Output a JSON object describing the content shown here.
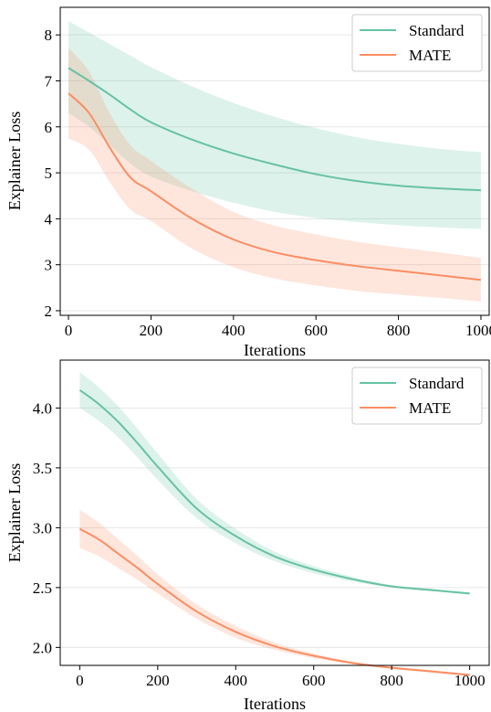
{
  "chart_data": [
    {
      "type": "line",
      "title": "",
      "xlabel": "Iterations",
      "ylabel": "Explainer Loss",
      "xlim": [
        -20,
        1020
      ],
      "ylim": [
        1.9,
        8.6
      ],
      "xticks": [
        0,
        200,
        400,
        600,
        800,
        1000
      ],
      "yticks": [
        2,
        3,
        4,
        5,
        6,
        7,
        8
      ],
      "grid": "horizontal",
      "legend_position": "top-right",
      "x": [
        0,
        50,
        100,
        150,
        200,
        300,
        400,
        500,
        600,
        700,
        800,
        900,
        1000
      ],
      "series": [
        {
          "name": "Standard",
          "color": "#66c2a5",
          "values": [
            7.28,
            7.0,
            6.7,
            6.38,
            6.1,
            5.72,
            5.42,
            5.18,
            4.97,
            4.82,
            4.72,
            4.66,
            4.62
          ],
          "lower": [
            6.3,
            6.0,
            5.6,
            5.2,
            4.92,
            4.6,
            4.35,
            4.15,
            4.02,
            3.93,
            3.86,
            3.81,
            3.78
          ],
          "upper": [
            8.3,
            8.05,
            7.8,
            7.55,
            7.3,
            6.88,
            6.52,
            6.22,
            5.97,
            5.77,
            5.63,
            5.52,
            5.45
          ]
        },
        {
          "name": "MATE",
          "color": "#fc8d62",
          "values": [
            6.73,
            6.3,
            5.55,
            4.9,
            4.6,
            4.0,
            3.55,
            3.27,
            3.1,
            2.97,
            2.87,
            2.77,
            2.67
          ],
          "lower": [
            5.75,
            5.5,
            4.8,
            4.2,
            3.95,
            3.35,
            2.95,
            2.7,
            2.55,
            2.43,
            2.35,
            2.28,
            2.2
          ],
          "upper": [
            7.72,
            7.2,
            6.3,
            5.6,
            5.26,
            4.65,
            4.15,
            3.85,
            3.66,
            3.5,
            3.38,
            3.27,
            3.15
          ]
        }
      ]
    },
    {
      "type": "line",
      "title": "",
      "xlabel": "Iterations",
      "ylabel": "Explainer Loss",
      "xlim": [
        -50,
        1050
      ],
      "ylim": [
        1.85,
        4.4
      ],
      "xticks": [
        0,
        200,
        400,
        600,
        800,
        1000
      ],
      "yticks": [
        2.0,
        2.5,
        3.0,
        3.5,
        4.0
      ],
      "grid": "horizontal",
      "legend_position": "top-right",
      "x": [
        0,
        50,
        100,
        150,
        200,
        300,
        400,
        500,
        600,
        700,
        800,
        900,
        1000
      ],
      "series": [
        {
          "name": "Standard",
          "color": "#66c2a5",
          "values": [
            4.15,
            4.03,
            3.88,
            3.7,
            3.51,
            3.16,
            2.93,
            2.76,
            2.65,
            2.57,
            2.51,
            2.48,
            2.45
          ],
          "lower": [
            4.0,
            3.89,
            3.75,
            3.58,
            3.4,
            3.08,
            2.87,
            2.72,
            2.62,
            2.55,
            2.5,
            2.47,
            2.44
          ],
          "upper": [
            4.3,
            4.17,
            4.01,
            3.82,
            3.62,
            3.24,
            2.99,
            2.8,
            2.68,
            2.59,
            2.52,
            2.49,
            2.46
          ]
        },
        {
          "name": "MATE",
          "color": "#fc8d62",
          "values": [
            2.99,
            2.9,
            2.78,
            2.66,
            2.53,
            2.3,
            2.13,
            2.01,
            1.93,
            1.87,
            1.83,
            1.8,
            1.77
          ],
          "lower": [
            2.83,
            2.76,
            2.66,
            2.56,
            2.45,
            2.24,
            2.08,
            1.98,
            1.91,
            1.86,
            1.82,
            1.79,
            1.76
          ],
          "upper": [
            3.15,
            3.04,
            2.9,
            2.76,
            2.61,
            2.36,
            2.18,
            2.04,
            1.95,
            1.88,
            1.84,
            1.81,
            1.78
          ]
        }
      ]
    }
  ]
}
